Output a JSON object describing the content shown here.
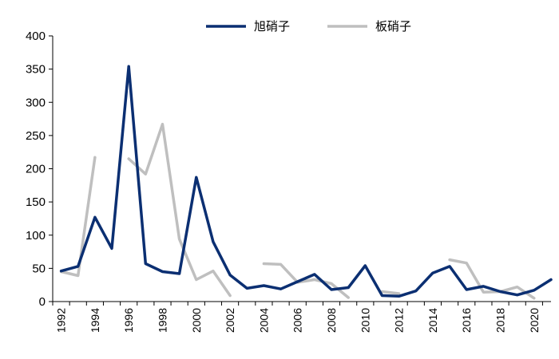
{
  "chart_data": {
    "type": "line",
    "title": "",
    "xlabel": "",
    "ylabel": "",
    "ylim": [
      0,
      400
    ],
    "yticks": [
      0,
      50,
      100,
      150,
      200,
      250,
      300,
      350,
      400
    ],
    "x": [
      1992,
      1993,
      1994,
      1995,
      1996,
      1997,
      1998,
      1999,
      2000,
      2001,
      2002,
      2003,
      2004,
      2005,
      2006,
      2007,
      2008,
      2009,
      2010,
      2011,
      2012,
      2013,
      2014,
      2015,
      2016,
      2017,
      2018,
      2019,
      2020,
      2021
    ],
    "xtick_labels": [
      "1992",
      "1994",
      "1996",
      "1998",
      "2000",
      "2002",
      "2004",
      "2006",
      "2008",
      "2010",
      "2012",
      "2014",
      "2016",
      "2018",
      "2020"
    ],
    "legend_position": "top",
    "grid": false,
    "series": [
      {
        "name": "旭硝子",
        "color": "#0b2f72",
        "values": [
          46,
          53,
          127,
          80,
          354,
          57,
          45,
          42,
          187,
          90,
          40,
          20,
          24,
          19,
          30,
          41,
          18,
          21,
          54,
          9,
          8,
          16,
          43,
          53,
          18,
          23,
          15,
          10,
          17,
          33
        ]
      },
      {
        "name": "板硝子",
        "color": "#bfbfbf",
        "values": [
          45,
          39,
          217,
          null,
          215,
          192,
          267,
          94,
          33,
          46,
          9,
          null,
          57,
          56,
          29,
          33,
          27,
          6,
          null,
          15,
          12,
          null,
          null,
          63,
          58,
          14,
          15,
          22,
          5,
          null
        ]
      }
    ]
  }
}
